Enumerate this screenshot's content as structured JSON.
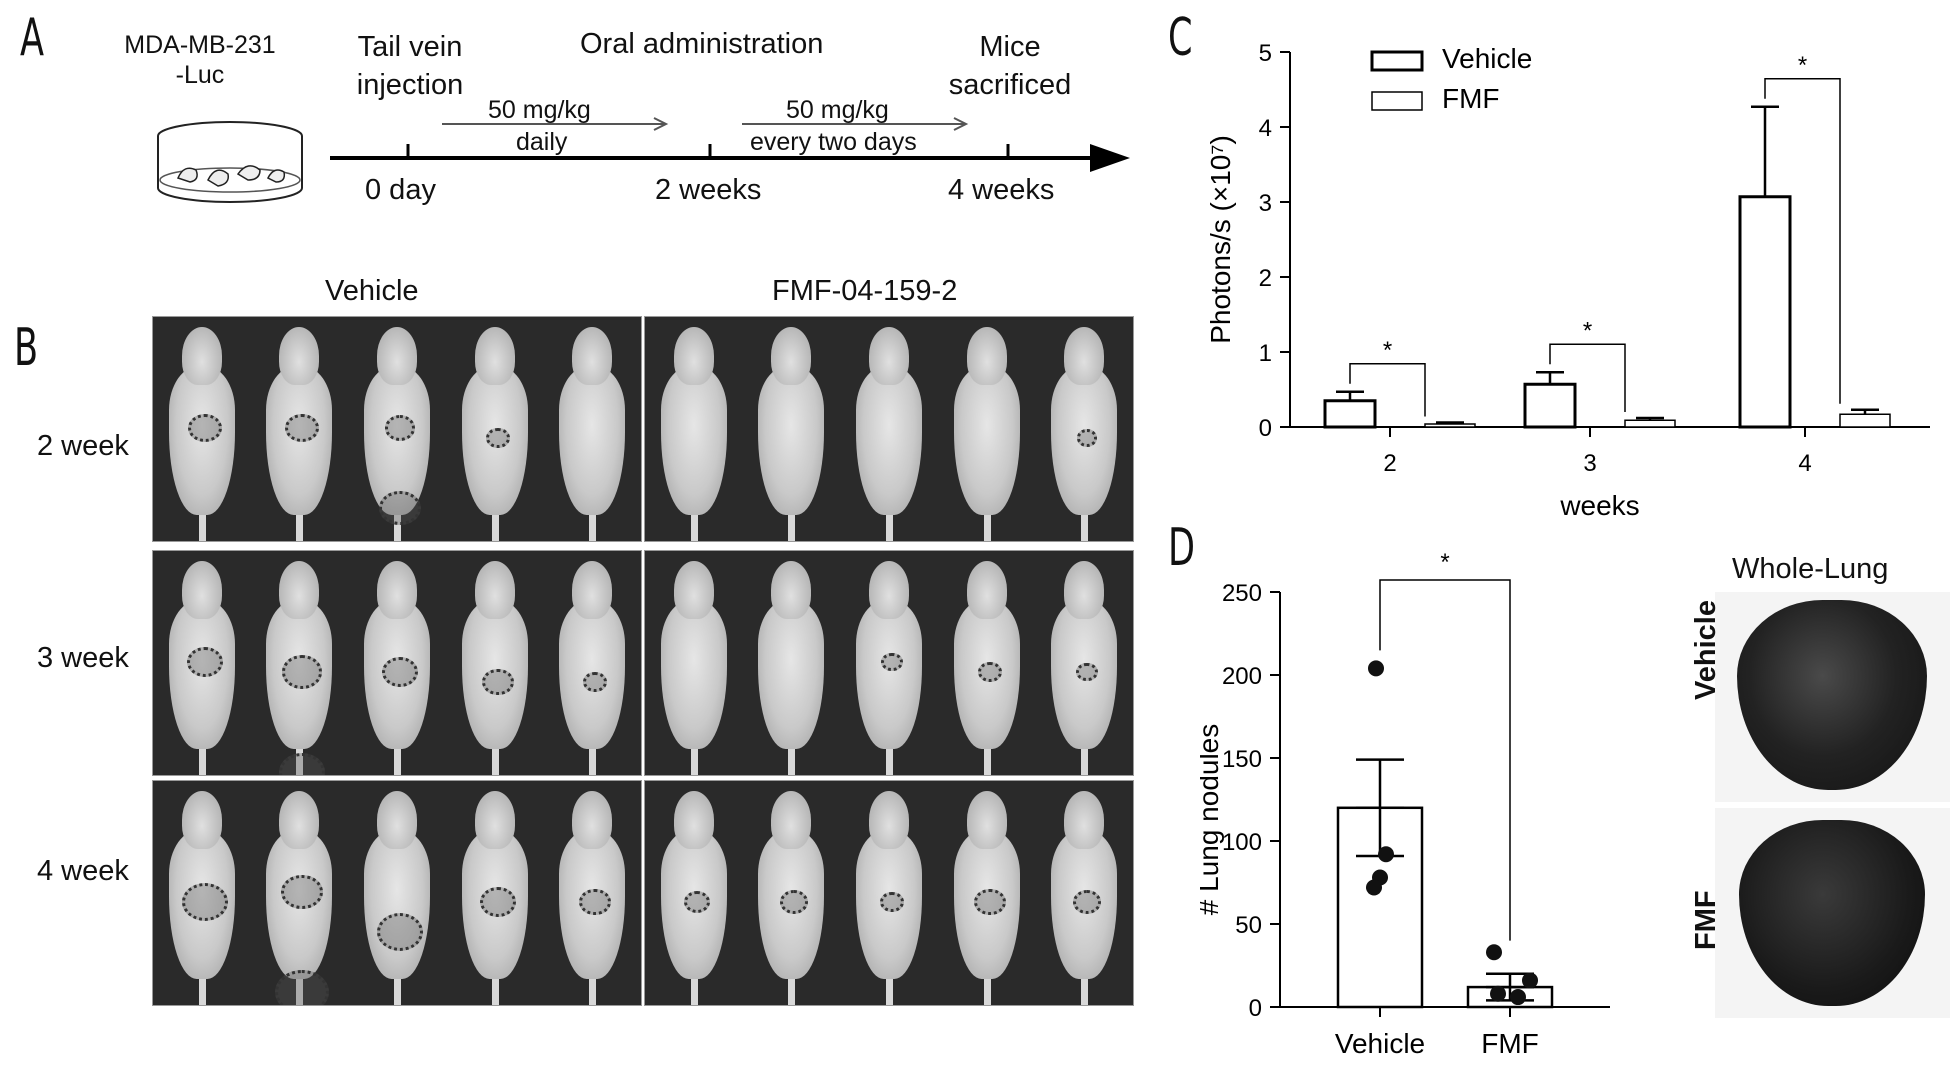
{
  "panels": {
    "a": "A",
    "b": "B",
    "c": "C",
    "d": "D"
  },
  "panel_a": {
    "cell_line_1": "MDA-MB-231",
    "cell_line_2": "-Luc",
    "injection_1": "Tail vein",
    "injection_2": "injection",
    "oral": "Oral administration",
    "sacrificed_1": "Mice",
    "sacrificed_2": "sacrificed",
    "dose1_top": "50 mg/kg",
    "dose1_bottom": "daily",
    "dose2_top": "50 mg/kg",
    "dose2_bottom": "every two days",
    "t0": "0 day",
    "t2": "2 weeks",
    "t4": "4 weeks"
  },
  "panel_b": {
    "col_vehicle": "Vehicle",
    "col_fmf": "FMF-04-159-2",
    "rows": [
      "2 week",
      "3 week",
      "4 week"
    ]
  },
  "panel_d": {
    "whole_lung_title": "Whole-Lung",
    "lung_vehicle": "Vehicle",
    "lung_fmf": "FMF"
  },
  "chart_data": [
    {
      "id": "C",
      "type": "bar",
      "categories": [
        "2",
        "3",
        "4"
      ],
      "xlabel": "weeks",
      "ylabel": "Photons/s (×10⁷)",
      "ylim": [
        0,
        5
      ],
      "yticks": [
        0,
        1,
        2,
        3,
        4,
        5
      ],
      "series": [
        {
          "name": "Vehicle",
          "values": [
            0.35,
            0.57,
            3.07
          ],
          "errors": [
            0.12,
            0.16,
            1.2
          ]
        },
        {
          "name": "FMF",
          "values": [
            0.04,
            0.09,
            0.17
          ],
          "errors": [
            0.02,
            0.03,
            0.06
          ]
        }
      ],
      "significance": [
        "*",
        "*",
        "*"
      ],
      "legend": "top-left"
    },
    {
      "id": "D",
      "type": "bar",
      "categories": [
        "Vehicle",
        "FMF"
      ],
      "ylabel": "# Lung nodules",
      "ylim": [
        0,
        250
      ],
      "yticks": [
        0,
        50,
        100,
        150,
        200,
        250
      ],
      "values": [
        120,
        12
      ],
      "errors": [
        29,
        8
      ],
      "points": [
        [
          204,
          92,
          78,
          72
        ],
        [
          33,
          16,
          8,
          6
        ]
      ],
      "significance": "*"
    }
  ]
}
